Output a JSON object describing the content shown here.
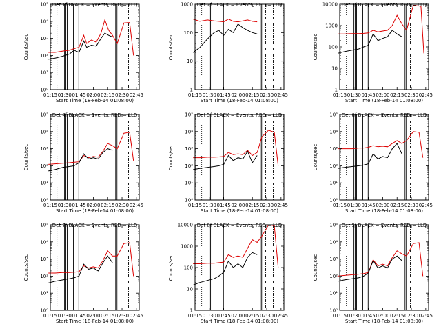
{
  "time_axis": {
    "xlabel": "Start Time (18-Feb-14 01:08:00)",
    "ticks": [
      "01:15",
      "01:30",
      "01:45",
      "02:00",
      "02:15",
      "02:30",
      "02:45"
    ],
    "xlim_minutes": [
      7,
      100
    ]
  },
  "ylabel": "Counts/sec",
  "colors": {
    "events": "#000000",
    "lld": "#dd0000",
    "frame": "#000000"
  },
  "markers": {
    "dotted": [
      1.5
    ],
    "solid": [
      3.2,
      3.5,
      3.8,
      5.2,
      6.4,
      14.7,
      15.0
    ],
    "dashdot": [
      15.9,
      17.6
    ]
  },
  "chart_data": [
    {
      "type": "line",
      "title": "Det 1f BLACK = Events, RED = LLD",
      "ylim_exp": [
        0,
        5
      ],
      "ytick_labels": [
        "10⁰",
        "10¹",
        "10²",
        "10³",
        "10⁴",
        "10⁵"
      ],
      "events": {
        "x": [
          "01:13",
          "01:20",
          "01:28",
          "01:35",
          "01:40",
          "01:45",
          "01:50",
          "01:53",
          "01:58",
          "02:03",
          "02:08",
          "02:12",
          "02:16",
          "02:20"
        ],
        "y": [
          60,
          70,
          90,
          120,
          200,
          150,
          700,
          300,
          400,
          350,
          1000,
          2000,
          1500,
          1200
        ]
      },
      "lld": {
        "x": [
          "01:13",
          "01:20",
          "01:28",
          "01:35",
          "01:40",
          "01:45",
          "01:50",
          "01:53",
          "01:58",
          "02:03",
          "02:08",
          "02:12",
          "02:16",
          "02:20",
          "02:25",
          "02:32",
          "02:38",
          "02:42"
        ],
        "y": [
          150,
          150,
          180,
          200,
          250,
          300,
          1500,
          500,
          800,
          600,
          2000,
          12000,
          3000,
          1500,
          500,
          8000,
          8500,
          100
        ]
      }
    },
    {
      "type": "line",
      "title": "Det 2f BLACK = Events, RED = LLD",
      "ylim_exp": [
        0,
        3
      ],
      "ytick_labels": [
        "1",
        "10",
        "100",
        "1000"
      ],
      "events": {
        "x": [
          "01:13",
          "01:20",
          "01:28",
          "01:35",
          "01:40",
          "01:45",
          "01:50",
          "01:55",
          "02:00",
          "02:05",
          "02:10",
          "02:15",
          "02:20"
        ],
        "y": [
          20,
          30,
          60,
          100,
          120,
          80,
          130,
          100,
          200,
          150,
          120,
          100,
          90
        ]
      },
      "lld": {
        "x": [
          "01:13",
          "01:20",
          "01:28",
          "01:35",
          "01:40",
          "01:45",
          "01:50",
          "01:55",
          "02:00",
          "02:05",
          "02:10",
          "02:15",
          "02:20"
        ],
        "y": [
          300,
          250,
          280,
          260,
          250,
          240,
          300,
          250,
          240,
          260,
          280,
          250,
          240
        ]
      }
    },
    {
      "type": "line",
      "title": "Det 3f BLACK = Events, RED = LLD",
      "ylim_exp": [
        0,
        4
      ],
      "ytick_labels": [
        "1",
        "10",
        "100",
        "1000",
        "10000"
      ],
      "events": {
        "x": [
          "01:13",
          "01:20",
          "01:28",
          "01:35",
          "01:40",
          "01:45",
          "01:50",
          "01:55",
          "02:00",
          "02:05",
          "02:10",
          "02:15",
          "02:20"
        ],
        "y": [
          50,
          60,
          70,
          80,
          100,
          120,
          400,
          200,
          250,
          300,
          600,
          400,
          300
        ]
      },
      "lld": {
        "x": [
          "01:13",
          "01:20",
          "01:28",
          "01:35",
          "01:40",
          "01:45",
          "01:50",
          "01:55",
          "02:00",
          "02:05",
          "02:10",
          "02:15",
          "02:20",
          "02:25",
          "02:32",
          "02:40",
          "02:43"
        ],
        "y": [
          400,
          400,
          420,
          420,
          430,
          450,
          600,
          500,
          550,
          600,
          1000,
          3000,
          1200,
          600,
          9000,
          8000,
          50
        ]
      }
    },
    {
      "type": "line",
      "title": "Det 4f BLACK = Events, RED = LLD",
      "ylim_exp": [
        0,
        5
      ],
      "ytick_labels": [
        "10⁰",
        "10¹",
        "10²",
        "10³",
        "10⁴",
        "10⁵"
      ],
      "events": {
        "x": [
          "01:13",
          "01:20",
          "01:28",
          "01:35",
          "01:40",
          "01:45",
          "01:50",
          "01:55",
          "02:00",
          "02:05",
          "02:10",
          "02:15",
          "02:20"
        ],
        "y": [
          50,
          60,
          80,
          90,
          100,
          150,
          500,
          250,
          300,
          250,
          600,
          1000,
          800
        ]
      },
      "lld": {
        "x": [
          "01:13",
          "01:20",
          "01:28",
          "01:35",
          "01:40",
          "01:45",
          "01:50",
          "01:55",
          "02:00",
          "02:05",
          "02:10",
          "02:15",
          "02:20",
          "02:25",
          "02:32",
          "02:38",
          "02:42"
        ],
        "y": [
          120,
          130,
          140,
          150,
          160,
          170,
          400,
          300,
          350,
          320,
          700,
          2000,
          1500,
          1000,
          8000,
          9000,
          200
        ]
      }
    },
    {
      "type": "line",
      "title": "Det 5f BLACK = Events, RED = LLD",
      "ylim_exp": [
        0,
        5
      ],
      "ytick_labels": [
        "10⁰",
        "10¹",
        "10²",
        "10³",
        "10⁴",
        "10⁵"
      ],
      "events": {
        "x": [
          "01:13",
          "01:20",
          "01:28",
          "01:35",
          "01:40",
          "01:45",
          "01:50",
          "01:55",
          "02:00",
          "02:05",
          "02:10",
          "02:15",
          "02:20"
        ],
        "y": [
          60,
          70,
          80,
          90,
          100,
          120,
          400,
          200,
          300,
          250,
          700,
          150,
          400
        ]
      },
      "lld": {
        "x": [
          "01:13",
          "01:20",
          "01:28",
          "01:35",
          "01:40",
          "01:45",
          "01:50",
          "01:55",
          "02:00",
          "02:05",
          "02:10",
          "02:15",
          "02:20",
          "02:25",
          "02:32",
          "02:38",
          "02:42"
        ],
        "y": [
          300,
          300,
          320,
          320,
          330,
          350,
          600,
          450,
          500,
          450,
          800,
          400,
          600,
          5000,
          12000,
          9000,
          100
        ]
      }
    },
    {
      "type": "line",
      "title": "Det 6f BLACK = Events, RED = LLD",
      "ylim_exp": [
        0,
        5
      ],
      "ytick_labels": [
        "10⁰",
        "10¹",
        "10²",
        "10³",
        "10⁴",
        "10⁵"
      ],
      "events": {
        "x": [
          "01:13",
          "01:20",
          "01:28",
          "01:35",
          "01:40",
          "01:45",
          "01:50",
          "01:55",
          "02:00",
          "02:05",
          "02:10",
          "02:15",
          "02:20"
        ],
        "y": [
          70,
          80,
          90,
          100,
          110,
          130,
          500,
          250,
          350,
          300,
          1000,
          2000,
          500
        ]
      },
      "lld": {
        "x": [
          "01:13",
          "01:20",
          "01:28",
          "01:35",
          "01:40",
          "01:45",
          "01:50",
          "01:55",
          "02:00",
          "02:05",
          "02:10",
          "02:15",
          "02:20",
          "02:25",
          "02:32",
          "02:38",
          "02:42"
        ],
        "y": [
          1000,
          1000,
          1000,
          1100,
          1100,
          1200,
          1500,
          1300,
          1400,
          1300,
          2000,
          3000,
          2000,
          3000,
          10000,
          9000,
          300
        ]
      }
    },
    {
      "type": "line",
      "title": "Det 7f BLACK = Events, RED = LLD",
      "ylim_exp": [
        0,
        5
      ],
      "ytick_labels": [
        "10⁰",
        "10¹",
        "10²",
        "10³",
        "10⁴",
        "10⁵"
      ],
      "events": {
        "x": [
          "01:13",
          "01:20",
          "01:28",
          "01:35",
          "01:40",
          "01:45",
          "01:50",
          "01:55",
          "02:00",
          "02:05",
          "02:10",
          "02:15",
          "02:20"
        ],
        "y": [
          40,
          50,
          60,
          70,
          80,
          100,
          500,
          250,
          300,
          200,
          600,
          1500,
          600
        ]
      },
      "lld": {
        "x": [
          "01:13",
          "01:20",
          "01:28",
          "01:35",
          "01:40",
          "01:45",
          "01:50",
          "01:55",
          "02:00",
          "02:05",
          "02:10",
          "02:15",
          "02:20",
          "02:25",
          "02:32",
          "02:38",
          "02:42"
        ],
        "y": [
          150,
          150,
          160,
          160,
          170,
          180,
          400,
          300,
          350,
          300,
          800,
          3000,
          1500,
          1500,
          8000,
          9000,
          100
        ]
      }
    },
    {
      "type": "line",
      "title": "Det 8f BLACK = Events, RED = LLD",
      "ylim_exp": [
        0,
        4
      ],
      "ytick_labels": [
        "1",
        "10",
        "100",
        "1000",
        "10000"
      ],
      "events": {
        "x": [
          "01:13",
          "01:20",
          "01:28",
          "01:35",
          "01:40",
          "01:45",
          "01:50",
          "01:55",
          "02:00",
          "02:05",
          "02:10",
          "02:15",
          "02:20"
        ],
        "y": [
          15,
          20,
          25,
          30,
          40,
          60,
          200,
          100,
          150,
          100,
          300,
          500,
          400
        ]
      },
      "lld": {
        "x": [
          "01:13",
          "01:20",
          "01:28",
          "01:35",
          "01:40",
          "01:45",
          "01:50",
          "01:55",
          "02:00",
          "02:05",
          "02:10",
          "02:15",
          "02:20",
          "02:25",
          "02:32",
          "02:38",
          "02:42"
        ],
        "y": [
          150,
          150,
          160,
          160,
          170,
          180,
          400,
          300,
          350,
          300,
          800,
          2000,
          1500,
          3000,
          10000,
          9000,
          100
        ]
      }
    },
    {
      "type": "line",
      "title": "Det 9f BLACK = Events, RED = LLD",
      "ylim_exp": [
        0,
        5
      ],
      "ytick_labels": [
        "10⁰",
        "10¹",
        "10²",
        "10³",
        "10⁴",
        "10⁵"
      ],
      "events": {
        "x": [
          "01:13",
          "01:20",
          "01:28",
          "01:35",
          "01:40",
          "01:45",
          "01:50",
          "01:55",
          "02:00",
          "02:05",
          "02:10",
          "02:15",
          "02:20"
        ],
        "y": [
          50,
          60,
          70,
          80,
          100,
          150,
          800,
          300,
          400,
          300,
          1000,
          1500,
          800
        ]
      },
      "lld": {
        "x": [
          "01:13",
          "01:20",
          "01:28",
          "01:35",
          "01:40",
          "01:45",
          "01:50",
          "01:55",
          "02:00",
          "02:05",
          "02:10",
          "02:15",
          "02:20",
          "02:25",
          "02:32",
          "02:38",
          "02:42"
        ],
        "y": [
          100,
          110,
          120,
          130,
          140,
          160,
          900,
          400,
          500,
          400,
          1200,
          3000,
          2000,
          1500,
          8000,
          9000,
          100
        ]
      }
    }
  ]
}
